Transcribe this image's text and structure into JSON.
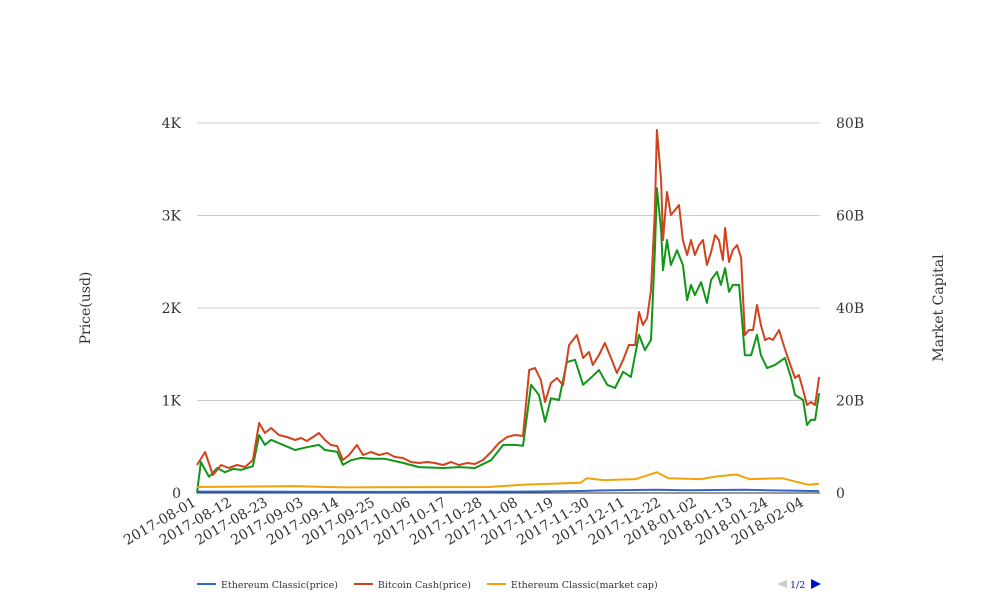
{
  "chart_data": {
    "type": "line",
    "x_start_date": "2017-08-01",
    "x_unit": "days since 2017-08-01",
    "x_ticks": [
      "2017-08-01",
      "2017-08-12",
      "2017-08-23",
      "2017-09-03",
      "2017-09-14",
      "2017-09-25",
      "2017-10-06",
      "2017-10-17",
      "2017-10-28",
      "2017-11-08",
      "2017-11-19",
      "2017-11-30",
      "2017-12-11",
      "2017-12-22",
      "2018-01-02",
      "2018-01-13",
      "2018-01-24",
      "2018-02-04"
    ],
    "x_tick_step_days": 11,
    "xlim": [
      0,
      191.4
    ],
    "ylabel_left": "Price(usd)",
    "ylabel_right": "Market Capital",
    "yticks_left": [
      "0",
      "1K",
      "2K",
      "3K",
      "4K"
    ],
    "yticks_right": [
      "0",
      "20B",
      "40B",
      "60B",
      "80B"
    ],
    "ylim_left": [
      0,
      4000
    ],
    "ylim_right_billions": [
      0,
      80
    ],
    "grid": true,
    "legend_position": "bottom",
    "legend_page": "1/2",
    "series": [
      {
        "name": "Ethereum Classic(price)",
        "axis": "left",
        "color": "#3366cc",
        "show_in_legend": true,
        "points": [
          [
            0,
            15
          ],
          [
            30,
            14
          ],
          [
            60,
            12
          ],
          [
            100,
            15
          ],
          [
            118,
            22
          ],
          [
            125,
            28
          ],
          [
            141.5,
            35
          ],
          [
            150,
            30
          ],
          [
            160,
            32
          ],
          [
            168,
            36
          ],
          [
            175,
            30
          ],
          [
            185,
            25
          ],
          [
            191.4,
            20
          ]
        ]
      },
      {
        "name": "Bitcoin Cash(price)",
        "axis": "left",
        "color": "#d0431c",
        "show_in_legend": true,
        "points": [
          [
            0,
            303
          ],
          [
            2.5,
            443
          ],
          [
            4.9,
            195
          ],
          [
            7.4,
            303
          ],
          [
            9.8,
            270
          ],
          [
            12.3,
            303
          ],
          [
            14.8,
            281
          ],
          [
            17.2,
            357
          ],
          [
            19.1,
            757
          ],
          [
            20.9,
            649
          ],
          [
            22.8,
            703
          ],
          [
            25.2,
            627
          ],
          [
            27.7,
            605
          ],
          [
            30.2,
            573
          ],
          [
            32,
            595
          ],
          [
            33.8,
            562
          ],
          [
            35.7,
            605
          ],
          [
            37.5,
            649
          ],
          [
            39.4,
            573
          ],
          [
            41.2,
            519
          ],
          [
            43.1,
            508
          ],
          [
            44.9,
            357
          ],
          [
            46.8,
            411
          ],
          [
            49.2,
            519
          ],
          [
            51.1,
            411
          ],
          [
            53.5,
            443
          ],
          [
            56,
            411
          ],
          [
            58.5,
            432
          ],
          [
            60.9,
            389
          ],
          [
            63.4,
            378
          ],
          [
            65.8,
            335
          ],
          [
            68.3,
            324
          ],
          [
            70.8,
            335
          ],
          [
            73.2,
            324
          ],
          [
            75.7,
            303
          ],
          [
            78.2,
            335
          ],
          [
            80.6,
            303
          ],
          [
            83.1,
            324
          ],
          [
            85.5,
            313
          ],
          [
            88,
            357
          ],
          [
            90.5,
            443
          ],
          [
            92.9,
            541
          ],
          [
            95.4,
            605
          ],
          [
            97.8,
            627
          ],
          [
            100.3,
            616
          ],
          [
            102.2,
            1330
          ],
          [
            104,
            1351
          ],
          [
            105.8,
            1222
          ],
          [
            107.1,
            984
          ],
          [
            108.9,
            1189
          ],
          [
            110.8,
            1243
          ],
          [
            112.6,
            1167
          ],
          [
            114.5,
            1600
          ],
          [
            115.7,
            1654
          ],
          [
            116.9,
            1708
          ],
          [
            118.8,
            1459
          ],
          [
            120.6,
            1524
          ],
          [
            121.8,
            1384
          ],
          [
            123.7,
            1492
          ],
          [
            125.5,
            1622
          ],
          [
            127.4,
            1459
          ],
          [
            129.2,
            1297
          ],
          [
            131.1,
            1438
          ],
          [
            132.9,
            1600
          ],
          [
            134.8,
            1600
          ],
          [
            136,
            1957
          ],
          [
            137.2,
            1816
          ],
          [
            138.5,
            1892
          ],
          [
            139.7,
            2194
          ],
          [
            140.9,
            3059
          ],
          [
            141.5,
            3924
          ],
          [
            142.8,
            3384
          ],
          [
            143.4,
            2735
          ],
          [
            144.6,
            3254
          ],
          [
            145.8,
            3005
          ],
          [
            147.1,
            3059
          ],
          [
            148.3,
            3113
          ],
          [
            149.5,
            2735
          ],
          [
            150.8,
            2573
          ],
          [
            152,
            2735
          ],
          [
            153.2,
            2573
          ],
          [
            154.5,
            2681
          ],
          [
            155.7,
            2735
          ],
          [
            156.9,
            2465
          ],
          [
            158.2,
            2605
          ],
          [
            159.4,
            2789
          ],
          [
            160.6,
            2735
          ],
          [
            161.8,
            2519
          ],
          [
            162.5,
            2865
          ],
          [
            163.7,
            2497
          ],
          [
            164.9,
            2627
          ],
          [
            166.2,
            2681
          ],
          [
            167.4,
            2540
          ],
          [
            168.6,
            1708
          ],
          [
            169.8,
            1762
          ],
          [
            171.1,
            1762
          ],
          [
            172.3,
            2032
          ],
          [
            173.5,
            1816
          ],
          [
            174.8,
            1654
          ],
          [
            176,
            1676
          ],
          [
            177.2,
            1654
          ],
          [
            179.1,
            1762
          ],
          [
            180.3,
            1622
          ],
          [
            181.5,
            1492
          ],
          [
            182.8,
            1362
          ],
          [
            184,
            1243
          ],
          [
            185.2,
            1276
          ],
          [
            186.5,
            1113
          ],
          [
            187.7,
            951
          ],
          [
            188.9,
            984
          ],
          [
            190.2,
            951
          ],
          [
            191.4,
            1254
          ]
        ]
      },
      {
        "name": "Ethereum Classic(market cap)",
        "axis": "right",
        "unit": "billions USD",
        "color": "#f0a30a",
        "show_in_legend": true,
        "points": [
          [
            0,
            1.3
          ],
          [
            30,
            1.5
          ],
          [
            45,
            1.2
          ],
          [
            90,
            1.3
          ],
          [
            100,
            1.8
          ],
          [
            118,
            2.2
          ],
          [
            120,
            3.2
          ],
          [
            125,
            2.8
          ],
          [
            135,
            3.0
          ],
          [
            141.5,
            4.5
          ],
          [
            145,
            3.2
          ],
          [
            155,
            3.0
          ],
          [
            160,
            3.6
          ],
          [
            166,
            4.0
          ],
          [
            170,
            3.0
          ],
          [
            180,
            3.2
          ],
          [
            188,
            1.8
          ],
          [
            191.4,
            2.0
          ]
        ]
      },
      {
        "axis": "right",
        "unit": "billions USD",
        "color": "#109618",
        "show_in_legend": false,
        "points": [
          [
            0,
            0
          ],
          [
            1.2,
            6.7
          ],
          [
            3.7,
            3.5
          ],
          [
            6.2,
            5.4
          ],
          [
            8.6,
            4.5
          ],
          [
            11.1,
            5.2
          ],
          [
            13.5,
            5.0
          ],
          [
            17.2,
            5.8
          ],
          [
            19.1,
            12.5
          ],
          [
            20.9,
            10.4
          ],
          [
            22.8,
            11.5
          ],
          [
            26.5,
            10.4
          ],
          [
            30.2,
            9.3
          ],
          [
            33.8,
            9.9
          ],
          [
            37.5,
            10.4
          ],
          [
            39.4,
            9.3
          ],
          [
            43.1,
            8.9
          ],
          [
            44.9,
            6.1
          ],
          [
            47.4,
            7.1
          ],
          [
            50.5,
            7.6
          ],
          [
            53.5,
            7.4
          ],
          [
            57.8,
            7.4
          ],
          [
            63.4,
            6.5
          ],
          [
            68.3,
            5.6
          ],
          [
            75.7,
            5.4
          ],
          [
            80.6,
            5.6
          ],
          [
            85.5,
            5.4
          ],
          [
            90.5,
            7.1
          ],
          [
            94.2,
            10.4
          ],
          [
            97.8,
            10.4
          ],
          [
            100.3,
            10.2
          ],
          [
            102.8,
            23.4
          ],
          [
            105.2,
            21.2
          ],
          [
            107.1,
            15.4
          ],
          [
            108.9,
            20.5
          ],
          [
            111.4,
            20.1
          ],
          [
            113.8,
            28.3
          ],
          [
            116.3,
            28.8
          ],
          [
            118.8,
            23.4
          ],
          [
            121.2,
            24.9
          ],
          [
            123.7,
            26.6
          ],
          [
            126.2,
            23.4
          ],
          [
            128.6,
            22.7
          ],
          [
            131.1,
            26.2
          ],
          [
            133.5,
            25.1
          ],
          [
            136,
            34.2
          ],
          [
            137.8,
            30.9
          ],
          [
            139.7,
            33.1
          ],
          [
            140.9,
            52.5
          ],
          [
            141.5,
            65.9
          ],
          [
            142.8,
            56.9
          ],
          [
            143.4,
            48.2
          ],
          [
            144.6,
            54.7
          ],
          [
            145.8,
            49.3
          ],
          [
            147.7,
            52.5
          ],
          [
            149.5,
            49.3
          ],
          [
            150.8,
            41.7
          ],
          [
            152,
            45.0
          ],
          [
            153.2,
            42.8
          ],
          [
            155.1,
            45.6
          ],
          [
            156.9,
            41.1
          ],
          [
            158.2,
            46.1
          ],
          [
            160,
            47.8
          ],
          [
            161.2,
            45.0
          ],
          [
            162.5,
            48.6
          ],
          [
            163.7,
            43.5
          ],
          [
            164.9,
            45.0
          ],
          [
            166.8,
            45.0
          ],
          [
            168.6,
            29.8
          ],
          [
            170.5,
            29.8
          ],
          [
            172.3,
            34.2
          ],
          [
            173.5,
            29.8
          ],
          [
            175.4,
            27.0
          ],
          [
            177.8,
            27.7
          ],
          [
            180.9,
            29.2
          ],
          [
            182.8,
            24.9
          ],
          [
            184,
            21.2
          ],
          [
            186.5,
            20.1
          ],
          [
            187.7,
            14.7
          ],
          [
            188.9,
            15.8
          ],
          [
            190.2,
            15.8
          ],
          [
            191.4,
            21.6
          ]
        ]
      }
    ]
  }
}
